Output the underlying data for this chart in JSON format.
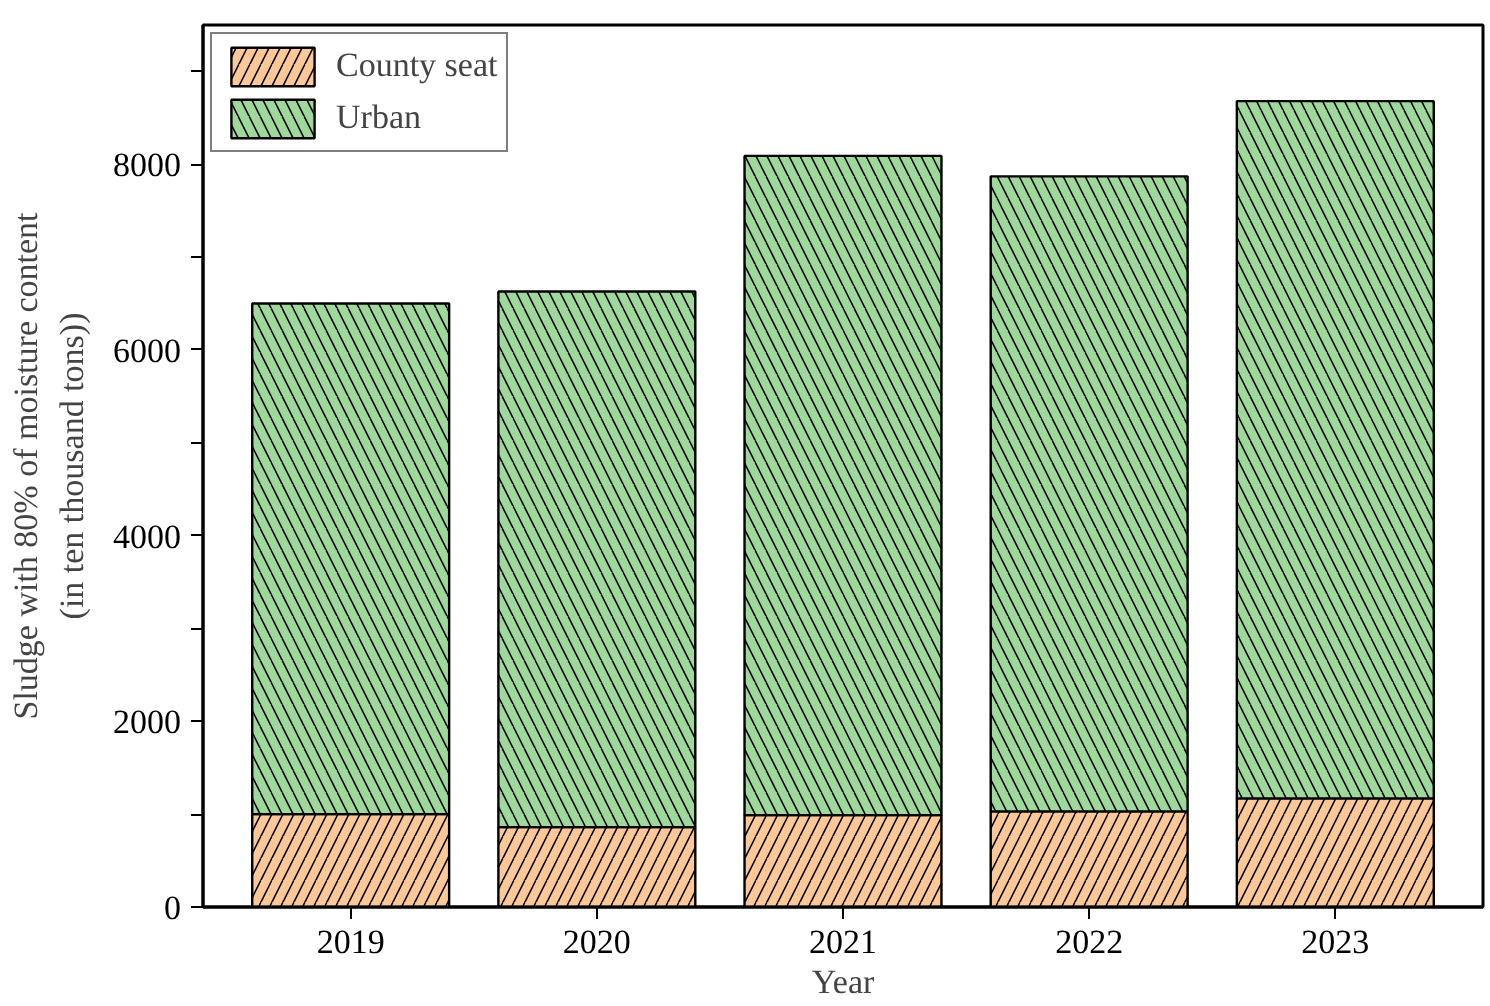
{
  "chart_data": {
    "type": "bar",
    "stacked": true,
    "xlabel": "Year",
    "ylabel": "Sludge with 80% of moisture content\n(in ten thousand tons))",
    "categories": [
      "2019",
      "2020",
      "2021",
      "2022",
      "2023"
    ],
    "series": [
      {
        "name": "County seat",
        "color": "#fdc897",
        "values": [
          1000,
          860,
          990,
          1030,
          1170
        ]
      },
      {
        "name": "Urban",
        "color": "#9fd89b",
        "values": [
          5500,
          5770,
          7100,
          6840,
          7510
        ]
      }
    ],
    "ylim": [
      0,
      9500
    ],
    "yticks": [
      0,
      {
        "value": 1000,
        "label": null
      },
      2000,
      {
        "value": 3000,
        "label": null
      },
      4000,
      {
        "value": 5000,
        "label": null
      },
      6000,
      {
        "value": 7000,
        "label": null
      },
      8000,
      {
        "value": 9000,
        "label": null
      }
    ],
    "grid": false,
    "legend": "top left"
  }
}
